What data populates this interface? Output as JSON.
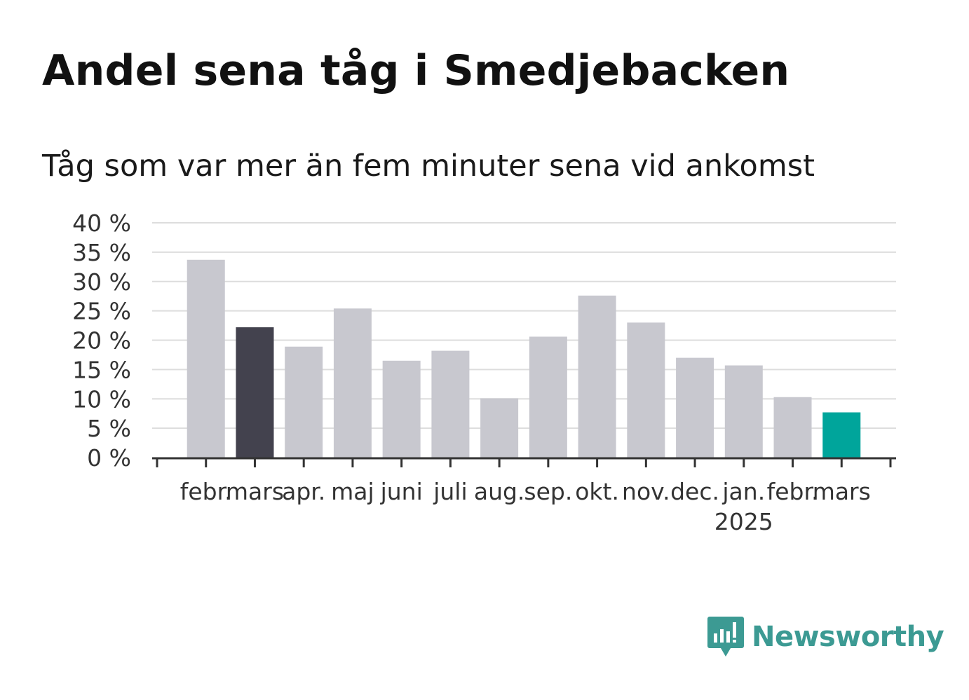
{
  "title": "Andel sena tåg i Smedjebacken",
  "subtitle": "Tåg som var mer än fem minuter sena vid ankomst",
  "brand": {
    "name": "Newsworthy",
    "color": "#3c9a93",
    "icon": "bar-chart-speech-bubble-icon"
  },
  "colors": {
    "default_bar": "#c8c8cf",
    "highlight_prev": "#43424e",
    "highlight_current": "#00a59b",
    "grid": "#dddddd",
    "axis": "#333333"
  },
  "chart_data": {
    "type": "bar",
    "categories": [
      "febr.",
      "mars",
      "apr.",
      "maj",
      "juni",
      "juli",
      "aug.",
      "sep.",
      "okt.",
      "nov.",
      "dec.",
      "jan.",
      "febr.",
      "mars"
    ],
    "category_sublabels": [
      "",
      "",
      "",
      "",
      "",
      "",
      "",
      "",
      "",
      "",
      "",
      "2025",
      "",
      ""
    ],
    "values": [
      33.7,
      22.2,
      18.9,
      25.4,
      16.5,
      18.2,
      10.1,
      20.6,
      27.6,
      23.0,
      17.0,
      15.7,
      10.3,
      7.7
    ],
    "bar_highlight": [
      "default",
      "previous",
      "default",
      "default",
      "default",
      "default",
      "default",
      "default",
      "default",
      "default",
      "default",
      "default",
      "default",
      "current"
    ],
    "ylim": [
      0,
      40
    ],
    "yticks": [
      0,
      5,
      10,
      15,
      20,
      25,
      30,
      35,
      40
    ],
    "ytick_labels": [
      "0 %",
      "5 %",
      "10 %",
      "15 %",
      "20 %",
      "25 %",
      "30 %",
      "35 %",
      "40 %"
    ],
    "xlabel": "",
    "ylabel": "",
    "grid": true
  }
}
